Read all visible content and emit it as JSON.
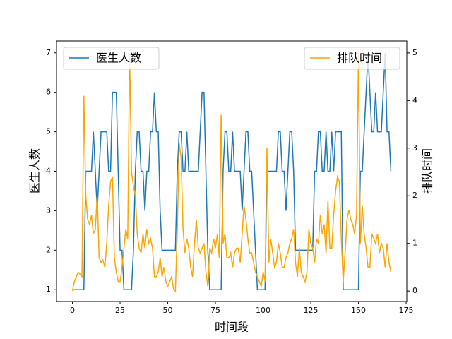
{
  "chart_data": {
    "type": "line",
    "x_label": "时间段",
    "y_label": "医生人数",
    "y2_label": "排队时间",
    "x": [
      0,
      1,
      2,
      3,
      4,
      5,
      6,
      7,
      8,
      9,
      10,
      11,
      12,
      13,
      14,
      15,
      16,
      17,
      18,
      19,
      20,
      21,
      22,
      23,
      24,
      25,
      26,
      27,
      28,
      29,
      30,
      31,
      32,
      33,
      34,
      35,
      36,
      37,
      38,
      39,
      40,
      41,
      42,
      43,
      44,
      45,
      46,
      47,
      48,
      49,
      50,
      51,
      52,
      53,
      54,
      55,
      56,
      57,
      58,
      59,
      60,
      61,
      62,
      63,
      64,
      65,
      66,
      67,
      68,
      69,
      70,
      71,
      72,
      73,
      74,
      75,
      76,
      77,
      78,
      79,
      80,
      81,
      82,
      83,
      84,
      85,
      86,
      87,
      88,
      89,
      90,
      91,
      92,
      93,
      94,
      95,
      96,
      97,
      98,
      99,
      100,
      101,
      102,
      103,
      104,
      105,
      106,
      107,
      108,
      109,
      110,
      111,
      112,
      113,
      114,
      115,
      116,
      117,
      118,
      119,
      120,
      121,
      122,
      123,
      124,
      125,
      126,
      127,
      128,
      129,
      130,
      131,
      132,
      133,
      134,
      135,
      136,
      137,
      138,
      139,
      140,
      141,
      142,
      143,
      144,
      145,
      146,
      147,
      148,
      149,
      150,
      151,
      152,
      153,
      154,
      155,
      156,
      157,
      158,
      159,
      160,
      161,
      162,
      163,
      164,
      165,
      166,
      167
    ],
    "series": [
      {
        "name": "医生人数",
        "color": "#1f77b4",
        "axis": "y",
        "values": [
          1,
          1,
          1,
          1,
          1,
          1,
          1,
          4,
          4,
          4,
          4,
          5,
          4,
          3,
          4,
          5,
          5,
          5,
          5,
          4,
          4,
          6,
          6,
          6,
          4,
          2,
          2,
          1,
          1,
          1,
          1,
          1,
          2,
          4,
          5,
          5,
          4,
          4,
          3,
          4,
          4,
          5,
          5,
          6,
          5,
          5,
          3,
          2,
          2,
          2,
          2,
          2,
          2,
          2,
          2,
          4,
          5,
          5,
          4,
          4,
          5,
          4,
          4,
          4,
          4,
          4,
          4,
          5,
          6,
          6,
          4,
          2,
          1,
          1,
          1,
          1,
          1,
          1,
          1,
          4,
          5,
          5,
          4,
          4,
          5,
          4,
          4,
          4,
          4,
          3,
          4,
          5,
          5,
          4,
          4,
          3,
          2,
          1,
          1,
          1,
          1,
          1,
          4,
          4,
          4,
          4,
          4,
          4,
          5,
          5,
          4,
          4,
          3,
          4,
          5,
          5,
          4,
          2,
          2,
          2,
          2,
          2,
          2,
          2,
          2,
          2,
          2,
          4,
          4,
          5,
          5,
          4,
          4,
          5,
          4,
          4,
          5,
          4,
          5,
          5,
          5,
          5,
          1,
          1,
          1,
          1,
          1,
          1,
          1,
          1,
          1,
          4,
          4,
          5,
          6,
          7,
          6,
          5,
          5,
          6,
          5,
          5,
          5,
          6,
          7,
          5,
          5,
          4
        ]
      },
      {
        "name": "排队时间",
        "color": "#ffa500",
        "axis": "y2",
        "values": [
          0,
          0.2,
          0.3,
          0.4,
          0.35,
          0.3,
          4.1,
          2,
          1.5,
          1.4,
          1.6,
          1.2,
          1.3,
          2,
          0.7,
          0.6,
          0.65,
          0.5,
          1,
          1.8,
          2.3,
          2.4,
          0.7,
          0.4,
          0.2,
          0.2,
          0.5,
          0.9,
          1.3,
          1.1,
          5.0,
          2.5,
          2.2,
          2,
          1.2,
          0.9,
          0.8,
          1.2,
          0.9,
          1.3,
          1,
          1.1,
          0.9,
          0.3,
          0.3,
          0.4,
          0.7,
          0.3,
          0.5,
          0.2,
          0.1,
          0.2,
          0.3,
          0.05,
          0,
          1.3,
          3.1,
          2.8,
          1.3,
          0.8,
          1.1,
          0.9,
          0.5,
          0.3,
          1,
          1.5,
          0.9,
          0.8,
          0.9,
          1,
          0.4,
          0.1,
          0.9,
          0.8,
          1.1,
          0.9,
          1.2,
          0.7,
          3.7,
          1,
          1.2,
          0.7,
          0.7,
          0.8,
          0.5,
          0.8,
          0.9,
          0.9,
          0.6,
          1.2,
          1.8,
          1.5,
          1.1,
          0.8,
          0.8,
          0.6,
          0.4,
          0.3,
          0.2,
          0.1,
          0.4,
          0.2,
          3.0,
          0.6,
          1.1,
          0.8,
          0.5,
          0.6,
          1,
          0.8,
          0.5,
          0.5,
          0.7,
          0.8,
          1,
          1.1,
          1.3,
          0.6,
          0.3,
          0.9,
          0.4,
          0.3,
          0.2,
          0.4,
          1.3,
          1,
          0.9,
          0.6,
          1.1,
          1,
          1.6,
          1.2,
          1.4,
          0.8,
          1.9,
          0.9,
          0.9,
          1.6,
          2.1,
          2.4,
          2.3,
          1.1,
          0.2,
          0.8,
          1.5,
          1.7,
          1.5,
          1.4,
          1.2,
          1.6,
          5.0,
          1,
          1.8,
          1.2,
          0.9,
          0.5,
          0.5,
          1.2,
          1.1,
          1,
          1.2,
          0.8,
          1,
          0.9,
          0.5,
          1,
          0.6,
          0.4
        ]
      }
    ],
    "xlim": [
      -8.35,
      175.35
    ],
    "xticks": [
      0,
      25,
      50,
      75,
      100,
      125,
      150,
      175
    ],
    "ylim": [
      0.7,
      7.3
    ],
    "yticks": [
      1,
      2,
      3,
      4,
      5,
      6,
      7
    ],
    "y2lim": [
      -0.22,
      5.25
    ],
    "y2ticks": [
      0,
      1,
      2,
      3,
      4,
      5
    ],
    "legend": [
      "upper left",
      "upper right"
    ],
    "grid": false
  }
}
